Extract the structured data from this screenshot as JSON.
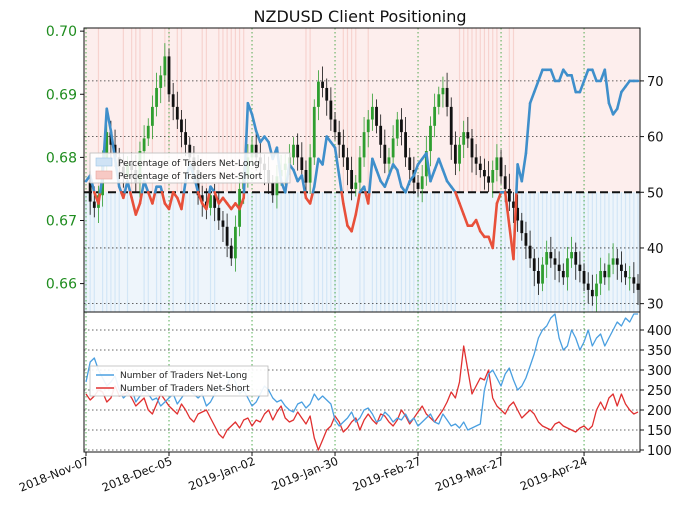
{
  "chart_data": [
    {
      "type": "line",
      "title": "NZDUSD Client Positioning",
      "left_axis": {
        "ticks": [
          "0.66",
          "0.67",
          "0.68",
          "0.69",
          "0.70"
        ],
        "range": [
          0.6555,
          0.7005
        ],
        "color": "#1e8c1e"
      },
      "right_axis": {
        "ticks": [
          "30",
          "40",
          "50",
          "60",
          "70"
        ],
        "range": [
          28.5,
          79.5
        ]
      },
      "x_ticks": [
        "2018-Nov-07",
        "2018-Dec-05",
        "2019-Jan-02",
        "2019-Jan-30",
        "2019-Feb-27",
        "2019-Mar-27",
        "2019-Apr-24"
      ],
      "reference_line": 50,
      "legend": [
        "Percentage of Traders Net-Long",
        "Percentage of Traders Net-Short"
      ],
      "colors": {
        "long": "#3f8fcb",
        "short": "#e8503a",
        "up_candle": "#2f9e2f",
        "down_candle": "#111111"
      },
      "series_pct_long": [
        52,
        53,
        50,
        48,
        53,
        65,
        61,
        56,
        51,
        49,
        52,
        49,
        46,
        48,
        52,
        50,
        48,
        51,
        51,
        48,
        47,
        50,
        49,
        47,
        52,
        55,
        53,
        50,
        48,
        47,
        51,
        50,
        48,
        49,
        48,
        47,
        48,
        47,
        49,
        66,
        64,
        61,
        59,
        60,
        59,
        56,
        58,
        52,
        50,
        55,
        54,
        52,
        53,
        49,
        48,
        51,
        56,
        55,
        60,
        59,
        58,
        53,
        48,
        44,
        43,
        46,
        50,
        51,
        48,
        56,
        54,
        52,
        51,
        53,
        55,
        54,
        51,
        50,
        52,
        53,
        55,
        56,
        57,
        52,
        54,
        56,
        54,
        52,
        51,
        50,
        48,
        46,
        44,
        44,
        45,
        43,
        42,
        42,
        40,
        48,
        50,
        50,
        44,
        38,
        55,
        52,
        57,
        66,
        68,
        70,
        72,
        72,
        72,
        70,
        70,
        72,
        71,
        71,
        68,
        68,
        70,
        72,
        72,
        70,
        70,
        72,
        66,
        64,
        65,
        68,
        69,
        70,
        70,
        70
      ],
      "series_price": [
        0.676,
        0.673,
        0.672,
        0.674,
        0.679,
        0.684,
        0.682,
        0.68,
        0.6785,
        0.677,
        0.679,
        0.678,
        0.676,
        0.681,
        0.683,
        0.685,
        0.688,
        0.691,
        0.693,
        0.696,
        0.69,
        0.688,
        0.686,
        0.684,
        0.682,
        0.68,
        0.678,
        0.674,
        0.673,
        0.672,
        0.674,
        0.672,
        0.67,
        0.669,
        0.666,
        0.664,
        0.669,
        0.675,
        0.677,
        0.68,
        0.682,
        0.68,
        0.679,
        0.678,
        0.676,
        0.674,
        0.677,
        0.678,
        0.679,
        0.68,
        0.682,
        0.68,
        0.678,
        0.676,
        0.68,
        0.688,
        0.692,
        0.691,
        0.689,
        0.686,
        0.684,
        0.682,
        0.68,
        0.678,
        0.675,
        0.676,
        0.68,
        0.684,
        0.686,
        0.688,
        0.685,
        0.682,
        0.679,
        0.68,
        0.683,
        0.686,
        0.684,
        0.68,
        0.678,
        0.676,
        0.675,
        0.677,
        0.681,
        0.685,
        0.688,
        0.69,
        0.691,
        0.688,
        0.682,
        0.679,
        0.682,
        0.684,
        0.683,
        0.68,
        0.679,
        0.678,
        0.677,
        0.676,
        0.678,
        0.68,
        0.677,
        0.675,
        0.673,
        0.672,
        0.67,
        0.668,
        0.666,
        0.664,
        0.662,
        0.66,
        0.663,
        0.665,
        0.664,
        0.663,
        0.662,
        0.661,
        0.664,
        0.665,
        0.663,
        0.662,
        0.66,
        0.659,
        0.658,
        0.66,
        0.662,
        0.661,
        0.663,
        0.664,
        0.663,
        0.662,
        0.661,
        0.661,
        0.66,
        0.659
      ]
    },
    {
      "type": "line",
      "right_axis": {
        "ticks": [
          "100",
          "150",
          "200",
          "250",
          "300",
          "350",
          "400"
        ],
        "range": [
          95,
          445
        ]
      },
      "legend": [
        "Number of Traders Net-Long",
        "Number of Traders Net-Short"
      ],
      "colors": {
        "long": "#4a9fe0",
        "short": "#e03030"
      },
      "series_long": [
        270,
        320,
        330,
        300,
        280,
        260,
        270,
        285,
        250,
        230,
        240,
        255,
        220,
        235,
        250,
        240,
        225,
        230,
        210,
        220,
        230,
        240,
        215,
        230,
        245,
        250,
        240,
        230,
        240,
        210,
        220,
        240,
        255,
        250,
        260,
        290,
        270,
        240,
        250,
        230,
        210,
        220,
        240,
        260,
        250,
        230,
        220,
        225,
        210,
        200,
        195,
        215,
        220,
        205,
        215,
        240,
        225,
        235,
        225,
        215,
        175,
        160,
        170,
        180,
        195,
        170,
        180,
        200,
        205,
        190,
        170,
        175,
        195,
        185,
        170,
        180,
        175,
        190,
        170,
        180,
        160,
        170,
        180,
        190,
        170,
        165,
        190,
        175,
        160,
        165,
        155,
        170,
        150,
        155,
        160,
        165,
        250,
        290,
        300,
        280,
        260,
        290,
        305,
        275,
        250,
        260,
        280,
        310,
        340,
        380,
        400,
        410,
        430,
        440,
        380,
        350,
        360,
        400,
        380,
        350,
        370,
        400,
        360,
        380,
        390,
        360,
        380,
        400,
        420,
        410,
        430,
        420,
        440,
        440
      ],
      "series_short": [
        240,
        225,
        235,
        250,
        245,
        220,
        230,
        260,
        235,
        240,
        245,
        230,
        210,
        220,
        230,
        200,
        190,
        215,
        240,
        225,
        210,
        200,
        190,
        215,
        200,
        180,
        170,
        190,
        195,
        200,
        180,
        160,
        140,
        130,
        150,
        160,
        170,
        155,
        175,
        180,
        160,
        175,
        170,
        190,
        200,
        175,
        195,
        210,
        180,
        170,
        175,
        195,
        180,
        165,
        185,
        130,
        100,
        125,
        150,
        160,
        185,
        170,
        145,
        155,
        170,
        180,
        150,
        175,
        190,
        175,
        165,
        190,
        185,
        170,
        160,
        175,
        200,
        185,
        165,
        180,
        195,
        210,
        190,
        180,
        170,
        185,
        200,
        220,
        245,
        230,
        270,
        360,
        300,
        240,
        260,
        280,
        275,
        300,
        230,
        210,
        200,
        190,
        210,
        220,
        200,
        180,
        190,
        200,
        190,
        170,
        160,
        155,
        150,
        165,
        170,
        160,
        155,
        150,
        145,
        155,
        160,
        150,
        160,
        200,
        220,
        200,
        230,
        240,
        210,
        240,
        215,
        200,
        190,
        195
      ]
    }
  ]
}
